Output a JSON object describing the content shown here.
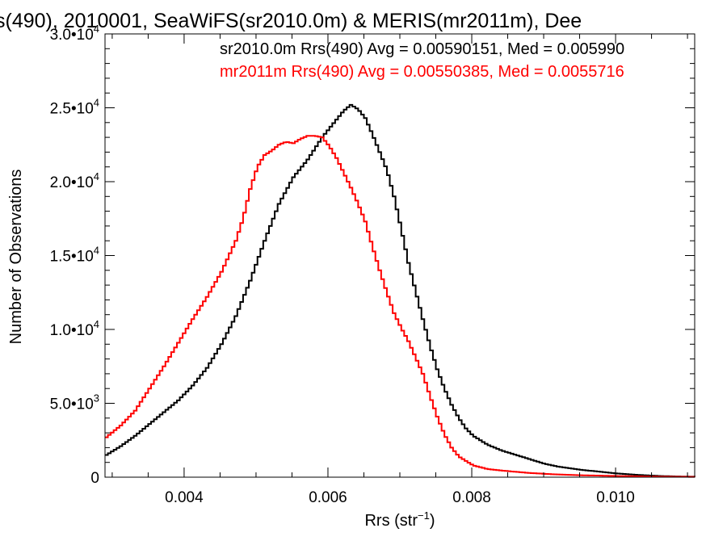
{
  "chart_data": {
    "type": "line",
    "title": "s(490), 2010001, SeaWiFS(sr2010.0m) & MERIS(mr2011m), Dee",
    "xlabel": "Rrs (str",
    "xlabel_sup": "−1",
    "xlabel_suffix": ")",
    "ylabel": "Number of Observations",
    "xlim": [
      0.0029,
      0.0111
    ],
    "ylim": [
      0,
      30000
    ],
    "grid": false,
    "x_ticks": [
      {
        "value": 0.004,
        "label": "0.004"
      },
      {
        "value": 0.006,
        "label": "0.006"
      },
      {
        "value": 0.008,
        "label": "0.008"
      },
      {
        "value": 0.01,
        "label": "0.010"
      }
    ],
    "y_ticks": [
      {
        "value": 0,
        "mant": "0",
        "exp": ""
      },
      {
        "value": 5000,
        "mant": "5.0•10",
        "exp": "3"
      },
      {
        "value": 10000,
        "mant": "1.0•10",
        "exp": "4"
      },
      {
        "value": 15000,
        "mant": "1.5•10",
        "exp": "4"
      },
      {
        "value": 20000,
        "mant": "2.0•10",
        "exp": "4"
      },
      {
        "value": 25000,
        "mant": "2.5•10",
        "exp": "4"
      },
      {
        "value": 30000,
        "mant": "3.0•10",
        "exp": "4"
      }
    ],
    "annotations": [
      {
        "text": "sr2010.0m Rrs(490) Avg = 0.00590151, Med = 0.005990",
        "color": "#000000"
      },
      {
        "text": "mr2011m Rrs(490) Avg = 0.00550385, Med = 0.0055716",
        "color": "#ff0000"
      }
    ],
    "series": [
      {
        "color": "#000000",
        "x": [
          0.0029,
          0.0031,
          0.0033,
          0.0035,
          0.0037,
          0.0039,
          0.0041,
          0.0043,
          0.0045,
          0.0047,
          0.0049,
          0.0051,
          0.0053,
          0.0055,
          0.0057,
          0.0059,
          0.0061,
          0.0062,
          0.0063,
          0.0064,
          0.0065,
          0.0066,
          0.0067,
          0.0068,
          0.0069,
          0.007,
          0.0071,
          0.0072,
          0.0073,
          0.0074,
          0.0075,
          0.0076,
          0.0077,
          0.0078,
          0.0079,
          0.008,
          0.0081,
          0.0082,
          0.0084,
          0.0086,
          0.0088,
          0.009,
          0.0092,
          0.0095,
          0.0098,
          0.01,
          0.0103,
          0.0106,
          0.0108,
          0.0111
        ],
        "y": [
          1500,
          2100,
          2800,
          3600,
          4400,
          5200,
          6200,
          7400,
          9000,
          10900,
          13300,
          16000,
          18500,
          20300,
          21500,
          23000,
          24200,
          24800,
          25200,
          24900,
          24300,
          23200,
          22000,
          20800,
          19000,
          16800,
          14500,
          12600,
          10700,
          8900,
          7300,
          6000,
          4900,
          4000,
          3300,
          2800,
          2500,
          2200,
          1800,
          1500,
          1200,
          900,
          700,
          500,
          350,
          250,
          150,
          80,
          50,
          30
        ]
      },
      {
        "color": "#ff0000",
        "x": [
          0.0029,
          0.0031,
          0.0033,
          0.0035,
          0.0037,
          0.0039,
          0.0041,
          0.0043,
          0.0045,
          0.0047,
          0.0048,
          0.0049,
          0.005,
          0.0051,
          0.0052,
          0.0053,
          0.0054,
          0.0055,
          0.0056,
          0.0057,
          0.0058,
          0.0059,
          0.006,
          0.0061,
          0.0062,
          0.0063,
          0.0064,
          0.0065,
          0.0066,
          0.0067,
          0.0068,
          0.0069,
          0.007,
          0.0071,
          0.0072,
          0.0073,
          0.0074,
          0.0075,
          0.0076,
          0.0077,
          0.0078,
          0.008,
          0.0082,
          0.0085,
          0.0088,
          0.0091,
          0.0095,
          0.01,
          0.0105,
          0.0111
        ],
        "y": [
          2700,
          3500,
          4500,
          6000,
          7500,
          9100,
          10700,
          12200,
          13900,
          16000,
          17500,
          19500,
          21000,
          21800,
          22100,
          22500,
          22700,
          22600,
          22900,
          23100,
          23100,
          23000,
          22400,
          21600,
          20600,
          19600,
          18500,
          17300,
          15600,
          14000,
          12500,
          11100,
          10100,
          9200,
          8100,
          7000,
          5500,
          4100,
          2900,
          2000,
          1400,
          800,
          550,
          400,
          280,
          200,
          130,
          80,
          40,
          20
        ]
      }
    ]
  }
}
